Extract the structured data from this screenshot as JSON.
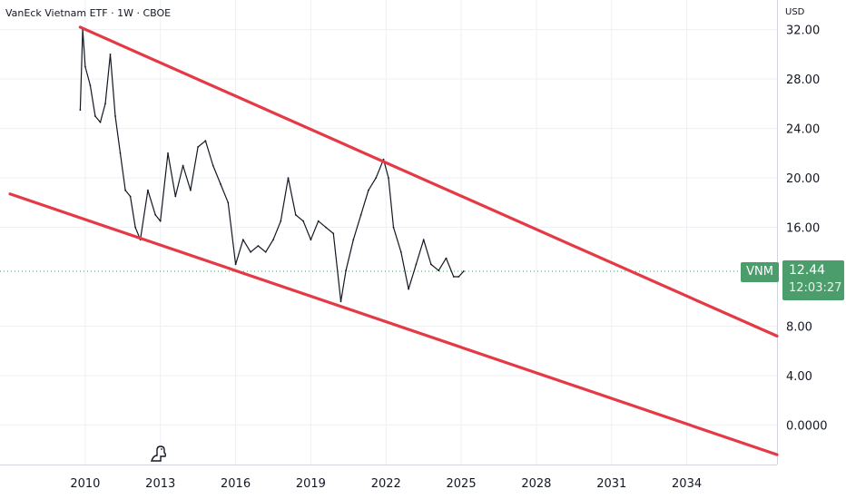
{
  "header": {
    "title": "VanEck Vietnam ETF · 1W · CBOE",
    "currency": "USD"
  },
  "price_flag": {
    "symbol": "VNM",
    "last_price": "12.44",
    "countdown": "12:03:27",
    "color": "#4b9e6b"
  },
  "chart_data": {
    "type": "line",
    "title": "VanEck Vietnam ETF · 1W · CBOE",
    "xlabel": "",
    "ylabel": "USD",
    "x_range": [
      2006.6,
      2037.6
    ],
    "ylim": [
      -3.2,
      34.4
    ],
    "y_ticks": [
      "32.00",
      "28.00",
      "24.00",
      "20.00",
      "16.00",
      "8.00",
      "4.00",
      "0.0000"
    ],
    "y_tick_values": [
      32,
      28,
      24,
      20,
      16,
      8,
      4,
      0
    ],
    "x_ticks": [
      "2010",
      "2013",
      "2016",
      "2019",
      "2022",
      "2025",
      "2028",
      "2031",
      "2034"
    ],
    "x_tick_values": [
      2010,
      2013,
      2016,
      2019,
      2022,
      2025,
      2028,
      2031,
      2034
    ],
    "grid": true,
    "legend": "none",
    "series": [
      {
        "values": [
          [
            2009.8,
            25.5
          ],
          [
            2009.9,
            32.0
          ],
          [
            2010.0,
            29.0
          ],
          [
            2010.2,
            27.5
          ],
          [
            2010.4,
            25.0
          ],
          [
            2010.6,
            24.5
          ],
          [
            2010.8,
            26.0
          ],
          [
            2011.0,
            30.0
          ],
          [
            2011.2,
            25.0
          ],
          [
            2011.4,
            22.0
          ],
          [
            2011.6,
            19.0
          ],
          [
            2011.8,
            18.5
          ],
          [
            2012.0,
            16.0
          ],
          [
            2012.2,
            15.0
          ],
          [
            2012.5,
            19.0
          ],
          [
            2012.8,
            17.0
          ],
          [
            2013.0,
            16.5
          ],
          [
            2013.3,
            22.0
          ],
          [
            2013.6,
            18.5
          ],
          [
            2013.9,
            21.0
          ],
          [
            2014.2,
            19.0
          ],
          [
            2014.5,
            22.5
          ],
          [
            2014.8,
            23.0
          ],
          [
            2015.1,
            21.0
          ],
          [
            2015.4,
            19.5
          ],
          [
            2015.7,
            18.0
          ],
          [
            2016.0,
            13.0
          ],
          [
            2016.3,
            15.0
          ],
          [
            2016.6,
            14.0
          ],
          [
            2016.9,
            14.5
          ],
          [
            2017.2,
            14.0
          ],
          [
            2017.5,
            15.0
          ],
          [
            2017.8,
            16.5
          ],
          [
            2018.1,
            20.0
          ],
          [
            2018.4,
            17.0
          ],
          [
            2018.7,
            16.5
          ],
          [
            2019.0,
            15.0
          ],
          [
            2019.3,
            16.5
          ],
          [
            2019.6,
            16.0
          ],
          [
            2019.9,
            15.5
          ],
          [
            2020.2,
            10.0
          ],
          [
            2020.4,
            12.5
          ],
          [
            2020.7,
            15.0
          ],
          [
            2021.0,
            17.0
          ],
          [
            2021.3,
            19.0
          ],
          [
            2021.6,
            20.0
          ],
          [
            2021.9,
            21.5
          ],
          [
            2022.1,
            20.0
          ],
          [
            2022.3,
            16.0
          ],
          [
            2022.6,
            14.0
          ],
          [
            2022.9,
            11.0
          ],
          [
            2023.2,
            13.0
          ],
          [
            2023.5,
            15.0
          ],
          [
            2023.8,
            13.0
          ],
          [
            2024.1,
            12.5
          ],
          [
            2024.4,
            13.5
          ],
          [
            2024.7,
            12.0
          ],
          [
            2024.9,
            12.0
          ],
          [
            2025.1,
            12.44
          ]
        ],
        "color": "#131722"
      }
    ],
    "trend_lines": [
      {
        "from": [
          2009.8,
          32.2
        ],
        "to": [
          2037.6,
          7.2
        ],
        "color": "#e53945"
      },
      {
        "from": [
          2007.0,
          18.7
        ],
        "to": [
          2037.6,
          -2.4
        ],
        "color": "#e53945"
      }
    ],
    "last_value_line": 12.44
  }
}
